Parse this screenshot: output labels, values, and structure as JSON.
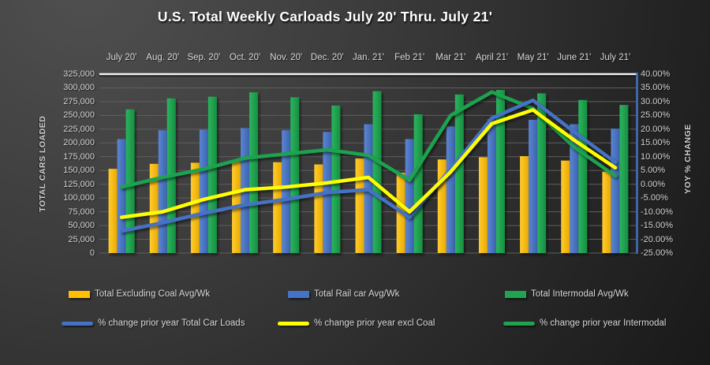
{
  "title": "U.S. Total Weekly Carloads July 20' Thru. July 21'",
  "left_axis": {
    "title": "TOTAL CARS LOADED",
    "ticks": [
      "325,000",
      "300,000",
      "275,000",
      "250,000",
      "225,000",
      "200,000",
      "175,000",
      "150,000",
      "125,000",
      "100,000",
      "75,000",
      "50,000",
      "25,000",
      "0"
    ]
  },
  "right_axis": {
    "title": "YOY % CHANGE",
    "ticks": [
      "40.00%",
      "35.00%",
      "30.00%",
      "25.00%",
      "20.00%",
      "15.00%",
      "10.00%",
      "5.00%",
      "0.00%",
      "-5.00%",
      "-10.00%",
      "-15.00%",
      "-20.00%",
      "-25.00%"
    ]
  },
  "colors": {
    "gold": "#FFC000",
    "blue": "#4472C4",
    "green": "#1FA34F",
    "yellow": "#FFFF00",
    "grid": "#5f5f5f",
    "grid_top": "#f2f2f2",
    "right_axis_line": "#4472C4",
    "text": "#d9d9d9"
  },
  "legend": {
    "items": [
      {
        "label": "Total Excluding Coal Avg/Wk",
        "kind": "bar",
        "color": "#FFC000"
      },
      {
        "label": "Total Rail car Avg/Wk",
        "kind": "bar",
        "color": "#4472C4"
      },
      {
        "label": "Total Intermodal Avg/Wk",
        "kind": "bar",
        "color": "#1FA34F"
      },
      {
        "label": "% change prior year Total Car Loads",
        "kind": "line",
        "color": "#4472C4"
      },
      {
        "label": "% change prior year excl Coal",
        "kind": "line",
        "color": "#FFFF00"
      },
      {
        "label": "% change prior year Intermodal",
        "kind": "line",
        "color": "#1FA34F"
      }
    ]
  },
  "chart_data": {
    "type": "combo",
    "categories": [
      "July 20'",
      "Aug. 20'",
      "Sep. 20'",
      "Oct. 20'",
      "Nov. 20'",
      "Dec. 20'",
      "Jan. 21'",
      "Feb 21'",
      "Mar 21'",
      "April 21'",
      "May 21'",
      "June 21'",
      "July 21'"
    ],
    "series": [
      {
        "name": "Total Excluding Coal Avg/Wk",
        "type": "bar",
        "axis": "left",
        "color": "#FFC000",
        "values": [
          153000,
          162000,
          164000,
          166000,
          165000,
          161000,
          172000,
          146000,
          170000,
          174000,
          176000,
          168000,
          148000
        ]
      },
      {
        "name": "Total Rail car Avg/Wk",
        "type": "bar",
        "axis": "left",
        "color": "#4472C4",
        "values": [
          207000,
          223000,
          224000,
          227000,
          223000,
          220000,
          234000,
          207000,
          230000,
          243000,
          242000,
          234000,
          226000
        ]
      },
      {
        "name": "Total Intermodal Avg/Wk",
        "type": "bar",
        "axis": "left",
        "color": "#1FA34F",
        "values": [
          261000,
          281000,
          284000,
          292000,
          283000,
          268000,
          294000,
          252000,
          288000,
          296000,
          290000,
          278000,
          269000
        ]
      },
      {
        "name": "% change prior year Total Car Loads",
        "type": "line",
        "axis": "right",
        "color": "#4472C4",
        "values": [
          -17,
          -14,
          -10.5,
          -7.5,
          -5.5,
          -3,
          -2,
          -12,
          5.5,
          24,
          30.5,
          19,
          8
        ]
      },
      {
        "name": "% change prior year excl Coal",
        "type": "line",
        "axis": "right",
        "color": "#FFFF00",
        "values": [
          -12,
          -10,
          -5.5,
          -2,
          -1,
          0.5,
          2.5,
          -10,
          4.5,
          22,
          27,
          16,
          6
        ]
      },
      {
        "name": "% change prior year Intermodal",
        "type": "line",
        "axis": "right",
        "color": "#1FA34F",
        "values": [
          -1,
          2.5,
          5.5,
          9.5,
          11,
          12.5,
          10.5,
          1.5,
          25,
          33.5,
          27.5,
          13.5,
          3
        ]
      }
    ],
    "title": "U.S. Total Weekly Carloads July 20' Thru. July 21'",
    "xlabel": "",
    "ylabel_left": "TOTAL CARS LOADED",
    "ylabel_right": "YOY % CHANGE",
    "left_ylim": [
      0,
      325000
    ],
    "left_tick_step": 25000,
    "right_ylim": [
      -25,
      40
    ],
    "right_tick_step": 5,
    "grid": true,
    "legend_position": "bottom"
  }
}
